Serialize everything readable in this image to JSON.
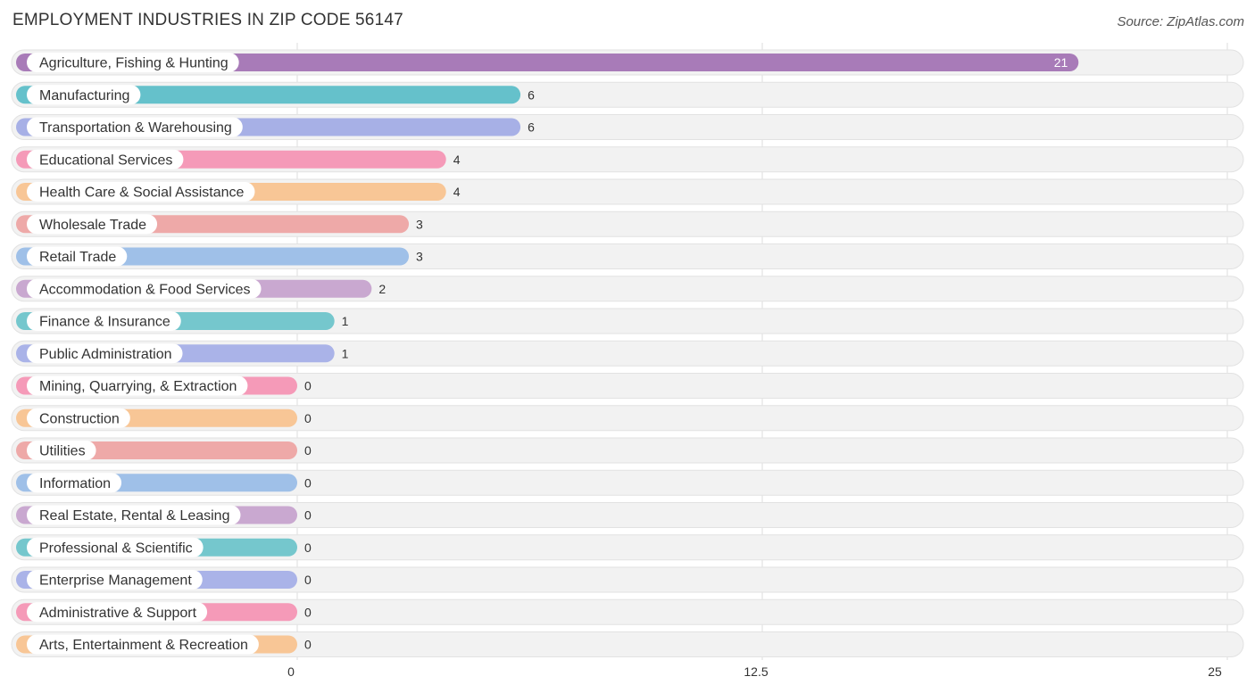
{
  "header": {
    "title": "EMPLOYMENT INDUSTRIES IN ZIP CODE 56147",
    "source": "Source: ZipAtlas.com"
  },
  "chart_data": {
    "type": "bar",
    "orientation": "horizontal",
    "title": "EMPLOYMENT INDUSTRIES IN ZIP CODE 56147",
    "xlim": [
      0,
      25
    ],
    "xticks": [
      "0",
      "12.5",
      "25"
    ],
    "grid": true,
    "categories": [
      "Agriculture, Fishing & Hunting",
      "Manufacturing",
      "Transportation & Warehousing",
      "Educational Services",
      "Health Care & Social Assistance",
      "Wholesale Trade",
      "Retail Trade",
      "Accommodation & Food Services",
      "Finance & Insurance",
      "Public Administration",
      "Mining, Quarrying, & Extraction",
      "Construction",
      "Utilities",
      "Information",
      "Real Estate, Rental & Leasing",
      "Professional & Scientific",
      "Enterprise Management",
      "Administrative & Support",
      "Arts, Entertainment & Recreation"
    ],
    "values": [
      21,
      6,
      6,
      4,
      4,
      3,
      3,
      2,
      1,
      1,
      0,
      0,
      0,
      0,
      0,
      0,
      0,
      0,
      0
    ],
    "colors": [
      "#a87bb8",
      "#65c1cb",
      "#a7b0e6",
      "#f59ab8",
      "#f8c696",
      "#eea9a8",
      "#9fc0e8",
      "#c9a8d0",
      "#75c7cd",
      "#aab3e8",
      "#f59ab8",
      "#f8c696",
      "#eea9a8",
      "#9fc0e8",
      "#c9a8d0",
      "#75c7cd",
      "#aab3e8",
      "#f59ab8",
      "#f8c696"
    ]
  }
}
